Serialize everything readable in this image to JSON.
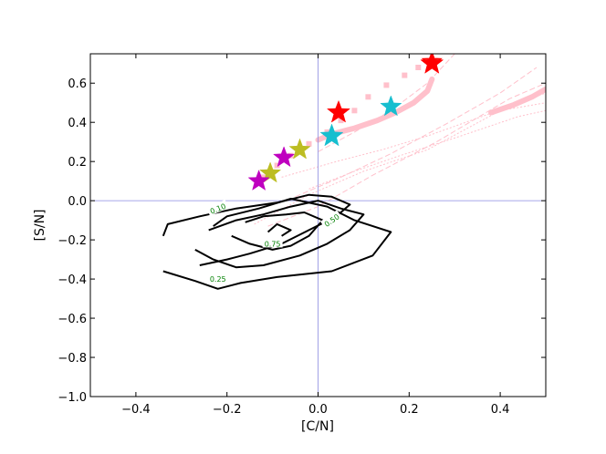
{
  "chart_data": {
    "type": "contour-scatter",
    "title": "",
    "xlabel": "[C/N]",
    "ylabel": "[S/N]",
    "xlim": [
      -0.5,
      0.5
    ],
    "ylim": [
      -1.0,
      0.75
    ],
    "x_ticks": [
      -0.4,
      -0.2,
      0.0,
      0.2,
      0.4
    ],
    "x_tick_labels": [
      "−0.4",
      "−0.2",
      "0.0",
      "0.2",
      "0.4"
    ],
    "y_ticks": [
      -1.0,
      -0.8,
      -0.6,
      -0.4,
      -0.2,
      0.0,
      0.2,
      0.4,
      0.6
    ],
    "y_tick_labels": [
      "−1.0",
      "−0.8",
      "−0.6",
      "−0.4",
      "−0.2",
      "0.0",
      "0.2",
      "0.4",
      "0.6"
    ],
    "reference_lines": {
      "x": 0.0,
      "y": 0.0,
      "color": "#8a8ae0"
    },
    "grid": false,
    "legend": "none",
    "contours": [
      {
        "level": "0.10",
        "points": [
          [
            -0.34,
            -0.18
          ],
          [
            -0.33,
            -0.12
          ],
          [
            -0.26,
            -0.08
          ],
          [
            -0.18,
            -0.04
          ],
          [
            -0.09,
            -0.01
          ],
          [
            -0.02,
            0.03
          ],
          [
            0.03,
            0.02
          ],
          [
            0.07,
            -0.02
          ],
          [
            0.04,
            -0.08
          ],
          [
            -0.02,
            -0.15
          ],
          [
            -0.08,
            -0.22
          ],
          [
            -0.15,
            -0.27
          ],
          [
            -0.2,
            -0.3
          ],
          [
            -0.26,
            -0.33
          ]
        ],
        "label_pos": [
          -0.22,
          -0.04
        ],
        "label_angle": -22
      },
      {
        "level": "0.25",
        "points": [
          [
            -0.34,
            -0.36
          ],
          [
            -0.27,
            -0.41
          ],
          [
            -0.22,
            -0.45
          ],
          [
            -0.17,
            -0.42
          ],
          [
            -0.09,
            -0.39
          ],
          [
            0.03,
            -0.36
          ],
          [
            0.12,
            -0.28
          ],
          [
            0.16,
            -0.16
          ],
          [
            0.08,
            -0.1
          ],
          [
            0.02,
            -0.03
          ],
          [
            -0.06,
            0.01
          ],
          [
            -0.13,
            -0.04
          ],
          [
            -0.2,
            -0.08
          ],
          [
            -0.23,
            -0.13
          ]
        ],
        "label_pos": [
          -0.22,
          -0.4
        ],
        "label_angle": 0
      },
      {
        "level": "0.50",
        "points": [
          [
            -0.27,
            -0.25
          ],
          [
            -0.23,
            -0.3
          ],
          [
            -0.18,
            -0.34
          ],
          [
            -0.12,
            -0.33
          ],
          [
            -0.04,
            -0.28
          ],
          [
            0.02,
            -0.22
          ],
          [
            0.07,
            -0.15
          ],
          [
            0.1,
            -0.07
          ],
          [
            0.05,
            -0.04
          ],
          [
            0.0,
            0.0
          ],
          [
            -0.06,
            -0.03
          ],
          [
            -0.12,
            -0.07
          ],
          [
            -0.18,
            -0.1
          ],
          [
            -0.24,
            -0.15
          ]
        ],
        "label_pos": [
          0.03,
          -0.1
        ],
        "label_angle": -35
      },
      {
        "level": "0.75",
        "points": [
          [
            -0.19,
            -0.18
          ],
          [
            -0.15,
            -0.22
          ],
          [
            -0.1,
            -0.25
          ],
          [
            -0.06,
            -0.23
          ],
          [
            -0.02,
            -0.18
          ],
          [
            0.01,
            -0.1
          ],
          [
            -0.03,
            -0.06
          ],
          [
            -0.07,
            -0.07
          ],
          [
            -0.12,
            -0.08
          ],
          [
            -0.16,
            -0.11
          ]
        ],
        "label_pos": [
          -0.1,
          -0.22
        ],
        "label_angle": 0
      },
      {
        "level": "",
        "points": [
          [
            -0.11,
            -0.16
          ],
          [
            -0.09,
            -0.12
          ],
          [
            -0.06,
            -0.15
          ],
          [
            -0.08,
            -0.18
          ]
        ],
        "label_pos": null,
        "label_angle": 0
      }
    ],
    "model_track": {
      "color": "#ffc0cb",
      "thick_line": [
        [
          0.0,
          0.31
        ],
        [
          0.03,
          0.34
        ],
        [
          0.08,
          0.37
        ],
        [
          0.13,
          0.41
        ],
        [
          0.17,
          0.45
        ],
        [
          0.21,
          0.5
        ],
        [
          0.24,
          0.56
        ],
        [
          0.25,
          0.62
        ]
      ],
      "thick_line_2": [
        [
          0.38,
          0.45
        ],
        [
          0.43,
          0.49
        ],
        [
          0.47,
          0.53
        ],
        [
          0.5,
          0.57
        ]
      ],
      "dotted_markers": [
        [
          -0.12,
          0.12
        ],
        [
          -0.09,
          0.18
        ],
        [
          -0.06,
          0.23
        ],
        [
          -0.02,
          0.29
        ],
        [
          0.02,
          0.35
        ],
        [
          0.05,
          0.41
        ],
        [
          0.08,
          0.46
        ],
        [
          0.11,
          0.53
        ],
        [
          0.15,
          0.59
        ],
        [
          0.19,
          0.64
        ],
        [
          0.22,
          0.68
        ]
      ],
      "thin_lines": [
        [
          [
            -0.11,
            -0.13
          ],
          [
            0.0,
            -0.03
          ],
          [
            0.12,
            0.13
          ],
          [
            0.26,
            0.3
          ],
          [
            0.42,
            0.52
          ],
          [
            0.5,
            0.6
          ]
        ],
        [
          [
            -0.14,
            -0.12
          ],
          [
            -0.02,
            0.03
          ],
          [
            0.1,
            0.15
          ],
          [
            0.24,
            0.26
          ],
          [
            0.4,
            0.46
          ],
          [
            0.5,
            0.5
          ]
        ],
        [
          [
            -0.05,
            0.02
          ],
          [
            0.05,
            0.12
          ],
          [
            0.16,
            0.24
          ],
          [
            0.28,
            0.39
          ],
          [
            0.4,
            0.55
          ],
          [
            0.48,
            0.68
          ]
        ],
        [
          [
            -0.02,
            0.06
          ],
          [
            0.08,
            0.15
          ],
          [
            0.18,
            0.23
          ],
          [
            0.3,
            0.32
          ],
          [
            0.44,
            0.43
          ],
          [
            0.5,
            0.46
          ]
        ],
        [
          [
            0.0,
            0.25
          ],
          [
            0.08,
            0.35
          ],
          [
            0.16,
            0.46
          ],
          [
            0.24,
            0.6
          ],
          [
            0.3,
            0.75
          ]
        ],
        [
          [
            -0.08,
            0.12
          ],
          [
            0.04,
            0.2
          ],
          [
            0.14,
            0.26
          ],
          [
            0.24,
            0.33
          ],
          [
            0.36,
            0.43
          ],
          [
            0.5,
            0.55
          ]
        ]
      ]
    },
    "stars": [
      {
        "x": 0.25,
        "y": 0.7,
        "color": "#ff0000",
        "size": 13,
        "filled": true
      },
      {
        "x": 0.25,
        "y": 0.71,
        "color": "#ff0000",
        "size": 10,
        "filled": false
      },
      {
        "x": 0.045,
        "y": 0.45,
        "color": "#ff0000",
        "size": 13,
        "filled": true
      },
      {
        "x": 0.16,
        "y": 0.48,
        "color": "#17becf",
        "size": 12,
        "filled": true
      },
      {
        "x": 0.03,
        "y": 0.33,
        "color": "#17becf",
        "size": 13,
        "filled": true
      },
      {
        "x": -0.04,
        "y": 0.26,
        "color": "#bcbd22",
        "size": 12,
        "filled": true
      },
      {
        "x": -0.105,
        "y": 0.14,
        "color": "#bcbd22",
        "size": 12,
        "filled": true
      },
      {
        "x": -0.075,
        "y": 0.22,
        "color": "#bf00bf",
        "size": 12,
        "filled": true
      },
      {
        "x": -0.13,
        "y": 0.1,
        "color": "#bf00bf",
        "size": 12,
        "filled": true
      }
    ]
  }
}
